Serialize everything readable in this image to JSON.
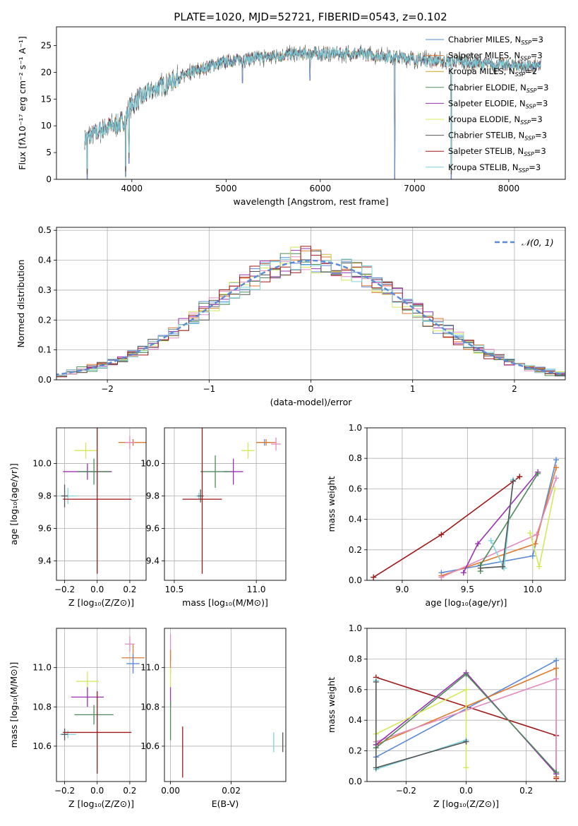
{
  "figure": {
    "title": "PLATE=1020, MJD=52721, FIBERID=0543, z=0.102"
  },
  "colors": {
    "Chabrier MILES": "#5b8bd6",
    "Salpeter MILES": "#e07a2e",
    "Kroupa MILES": "#c9a227",
    "Chabrier ELODIE": "#4f8a5b",
    "Salpeter ELODIE": "#9b30b0",
    "Kroupa ELODIE": "#d4e85a",
    "Chabrier STELIB": "#555555",
    "Salpeter STELIB": "#a01818",
    "Kroupa STELIB": "#7fd4dc",
    "pink": "#e48bc0"
  },
  "chart_data": [
    {
      "id": "spectrum",
      "type": "line",
      "xlabel": "wavelength [Angstrom, rest frame]",
      "ylabel": "Flux [fλ10⁻¹⁷ erg cm⁻² s⁻¹ A⁻¹]",
      "xlim": [
        3200,
        8600
      ],
      "ylim": [
        0,
        28.5
      ],
      "xticks": [
        4000,
        5000,
        6000,
        7000,
        8000
      ],
      "yticks": [
        0,
        5,
        10,
        15,
        20,
        25
      ],
      "legend_position": "top-right",
      "legend": [
        {
          "name": "Chabrier MILES, N",
          "sub": "SSP",
          "n": "=3"
        },
        {
          "name": "Salpeter MILES, N",
          "sub": "SSP",
          "n": "=3"
        },
        {
          "name": "Kroupa MILES, N",
          "sub": "SSP",
          "n": "=2"
        },
        {
          "name": "Chabrier ELODIE, N",
          "sub": "SSP",
          "n": "=3"
        },
        {
          "name": "Salpeter ELODIE, N",
          "sub": "SSP",
          "n": "=3"
        },
        {
          "name": "Kroupa ELODIE, N",
          "sub": "SSP",
          "n": "=3"
        },
        {
          "name": "Chabrier STELIB, N",
          "sub": "SSP",
          "n": "=3"
        },
        {
          "name": "Salpeter STELIB, N",
          "sub": "SSP",
          "n": "=3"
        },
        {
          "name": "Kroupa STELIB, N",
          "sub": "SSP",
          "n": "=3"
        }
      ],
      "continuum": {
        "x": [
          3500,
          3700,
          3900,
          4000,
          4200,
          4500,
          4800,
          5000,
          5200,
          5500,
          5800,
          6000,
          6300,
          6600,
          7000,
          7400,
          7800,
          8200,
          8350
        ],
        "y": [
          7.5,
          9.5,
          10.5,
          14,
          16.5,
          19,
          21,
          22,
          22.5,
          23,
          23.5,
          23.5,
          23.5,
          23.2,
          22.5,
          22,
          21.5,
          21.2,
          21
        ]
      },
      "dips": [
        {
          "x": 3935,
          "y": 0.5
        },
        {
          "x": 3970,
          "y": 3
        },
        {
          "x": 5175,
          "y": 18
        },
        {
          "x": 5890,
          "y": 18.5
        },
        {
          "x": 6790,
          "y": 0
        },
        {
          "x": 7390,
          "y": 0
        },
        {
          "x": 3525,
          "y": 0
        }
      ]
    },
    {
      "id": "residual-histogram",
      "type": "bar",
      "xlabel": "(data-model)/error",
      "ylabel": "Normed distribution",
      "xlim": [
        -2.5,
        2.5
      ],
      "ylim": [
        0,
        0.51
      ],
      "xticks": [
        -2,
        -1,
        0,
        1,
        2
      ],
      "yticks": [
        0.0,
        0.1,
        0.2,
        0.3,
        0.4,
        0.5
      ],
      "legend_position": "top-right",
      "legend": [
        {
          "name": "𝒩(0, 1)"
        }
      ],
      "bin_width": 0.1,
      "bin_start": -2.5
    },
    {
      "id": "age-vs-Z",
      "type": "scatter",
      "xlabel": "Z [log₁₀(Z/Z⊙)]",
      "ylabel": "age  [log₁₀(age/yr)]",
      "xlim": [
        -0.25,
        0.3
      ],
      "ylim": [
        9.28,
        10.22
      ],
      "xticks": [
        -0.2,
        0.0,
        0.2
      ],
      "yticks": [
        9.4,
        9.6,
        9.8,
        10.0
      ],
      "points": [
        {
          "series": "Chabrier MILES",
          "x": 0.22,
          "y": 10.13,
          "xerr": 0.04,
          "yerr": 0.02
        },
        {
          "series": "Salpeter MILES",
          "x": 0.22,
          "y": 10.13,
          "xerr": 0.09,
          "yerr": 0.02
        },
        {
          "series": "pink",
          "x": 0.2,
          "y": 10.13,
          "xerr": 0.03,
          "yerr": 0.04
        },
        {
          "series": "Kroupa ELODIE",
          "x": -0.07,
          "y": 10.08,
          "xerr": 0.07,
          "yerr": 0.05
        },
        {
          "series": "Salpeter ELODIE",
          "x": -0.06,
          "y": 9.95,
          "xerr": 0.15,
          "yerr": 0.05
        },
        {
          "series": "Chabrier ELODIE",
          "x": -0.02,
          "y": 9.95,
          "xerr": 0.1,
          "yerr": 0.08
        },
        {
          "series": "Kroupa STELIB",
          "x": -0.18,
          "y": 9.8,
          "xerr": 0.05,
          "yerr": 0.05
        },
        {
          "series": "Chabrier STELIB",
          "x": -0.2,
          "y": 9.8,
          "xerr": 0.02,
          "yerr": 0.07
        },
        {
          "series": "Salpeter STELIB",
          "x": 0.0,
          "y": 9.78,
          "xerr": 0.21,
          "yerr": 0.46
        }
      ]
    },
    {
      "id": "age-vs-mass",
      "type": "scatter",
      "xlabel": "mass [log₁₀(M/M⊙)]",
      "ylabel": "",
      "xlim": [
        10.44,
        11.18
      ],
      "ylim": [
        9.28,
        10.22
      ],
      "xticks": [
        10.5,
        11.0
      ],
      "yticks": [
        9.4,
        9.6,
        9.8,
        10.0
      ],
      "points": [
        {
          "series": "Chabrier MILES",
          "x": 11.05,
          "y": 10.13,
          "xerr": 0.05,
          "yerr": 0.02
        },
        {
          "series": "Salpeter MILES",
          "x": 11.06,
          "y": 10.13,
          "xerr": 0.06,
          "yerr": 0.02
        },
        {
          "series": "pink",
          "x": 11.12,
          "y": 10.12,
          "xerr": 0.03,
          "yerr": 0.04
        },
        {
          "series": "Kroupa ELODIE",
          "x": 10.95,
          "y": 10.08,
          "xerr": 0.04,
          "yerr": 0.05
        },
        {
          "series": "Salpeter ELODIE",
          "x": 10.86,
          "y": 9.95,
          "xerr": 0.06,
          "yerr": 0.08
        },
        {
          "series": "Chabrier ELODIE",
          "x": 10.75,
          "y": 9.95,
          "xerr": 0.09,
          "yerr": 0.1
        },
        {
          "series": "Kroupa STELIB",
          "x": 10.65,
          "y": 9.8,
          "xerr": 0.02,
          "yerr": 0.02
        },
        {
          "series": "Chabrier STELIB",
          "x": 10.66,
          "y": 9.8,
          "xerr": 0.02,
          "yerr": 0.04
        },
        {
          "series": "Salpeter STELIB",
          "x": 10.67,
          "y": 9.78,
          "xerr": 0.12,
          "yerr": 0.46
        }
      ]
    },
    {
      "id": "massweight-vs-age",
      "type": "line",
      "xlabel": "age  [log₁₀(age/yr)]",
      "ylabel": "mass weight",
      "xlim": [
        8.73,
        10.25
      ],
      "ylim": [
        0.0,
        1.0
      ],
      "xticks": [
        9.0,
        9.5,
        10.0
      ],
      "yticks": [
        0.0,
        0.2,
        0.4,
        0.6,
        0.8,
        1.0
      ],
      "series": [
        {
          "name": "Salpeter STELIB",
          "x": [
            8.78,
            9.3,
            9.9
          ],
          "y": [
            0.02,
            0.3,
            0.68
          ]
        },
        {
          "name": "Chabrier MILES",
          "x": [
            9.3,
            10.0,
            10.18
          ],
          "y": [
            0.05,
            0.16,
            0.79
          ]
        },
        {
          "name": "Salpeter MILES",
          "x": [
            9.3,
            10.02,
            10.18
          ],
          "y": [
            0.03,
            0.24,
            0.74
          ]
        },
        {
          "name": "pink",
          "x": [
            9.3,
            10.03,
            10.18
          ],
          "y": [
            0.02,
            0.3,
            0.67
          ]
        },
        {
          "name": "Salpeter ELODIE",
          "x": [
            9.47,
            9.58,
            10.04
          ],
          "y": [
            0.05,
            0.24,
            0.71
          ]
        },
        {
          "name": "Chabrier ELODIE",
          "x": [
            9.6,
            9.6,
            10.04
          ],
          "y": [
            0.06,
            0.1,
            0.7
          ]
        },
        {
          "name": "Kroupa ELODIE",
          "x": [
            9.98,
            10.05,
            10.17
          ],
          "y": [
            0.31,
            0.09,
            0.6
          ]
        },
        {
          "name": "Kroupa STELIB",
          "x": [
            9.68,
            9.78,
            9.85
          ],
          "y": [
            0.26,
            0.08,
            0.66
          ]
        },
        {
          "name": "Chabrier STELIB",
          "x": [
            9.6,
            9.77,
            9.85
          ],
          "y": [
            0.08,
            0.09,
            0.65
          ]
        }
      ]
    },
    {
      "id": "mass-vs-Z",
      "type": "scatter",
      "xlabel": "Z [log₁₀(Z/Z⊙)]",
      "ylabel": "mass [log₁₀(M/M⊙)]",
      "xlim": [
        -0.25,
        0.3
      ],
      "ylim": [
        10.42,
        11.2
      ],
      "xticks": [
        -0.2,
        0.0,
        0.2
      ],
      "yticks": [
        10.6,
        10.8,
        11.0
      ],
      "points": [
        {
          "series": "Salpeter MILES",
          "x": 0.22,
          "y": 11.05,
          "xerr": 0.07,
          "yerr": 0.07
        },
        {
          "series": "Chabrier MILES",
          "x": 0.22,
          "y": 11.02,
          "xerr": 0.04,
          "yerr": 0.05
        },
        {
          "series": "pink",
          "x": 0.2,
          "y": 11.12,
          "xerr": 0.03,
          "yerr": 0.04
        },
        {
          "series": "Kroupa ELODIE",
          "x": -0.06,
          "y": 10.93,
          "xerr": 0.07,
          "yerr": 0.05
        },
        {
          "series": "Salpeter ELODIE",
          "x": -0.06,
          "y": 10.85,
          "xerr": 0.1,
          "yerr": 0.05
        },
        {
          "series": "Chabrier ELODIE",
          "x": -0.02,
          "y": 10.76,
          "xerr": 0.12,
          "yerr": 0.05
        },
        {
          "series": "Kroupa STELIB",
          "x": -0.18,
          "y": 10.66,
          "xerr": 0.05,
          "yerr": 0.02
        },
        {
          "series": "Chabrier STELIB",
          "x": -0.2,
          "y": 10.66,
          "xerr": 0.02,
          "yerr": 0.03
        },
        {
          "series": "Salpeter STELIB",
          "x": 0.0,
          "y": 10.67,
          "xerr": 0.21,
          "yerr": 0.21
        }
      ]
    },
    {
      "id": "mass-vs-EBV",
      "type": "scatter",
      "xlabel": "E(B-V)",
      "ylabel": "",
      "xlim": [
        -0.002,
        0.038
      ],
      "ylim": [
        10.42,
        11.2
      ],
      "xticks": [
        0.0,
        0.02
      ],
      "yticks": [
        10.6,
        10.8,
        11.0
      ],
      "points": [
        {
          "series": "pink",
          "x": 0.0,
          "y": 11.1,
          "yerr": 0.07
        },
        {
          "series": "Salpeter MILES",
          "x": 0.0,
          "y": 11.03,
          "yerr": 0.06
        },
        {
          "series": "Kroupa ELODIE",
          "x": 0.0,
          "y": 10.95,
          "yerr": 0.05
        },
        {
          "series": "Salpeter ELODIE",
          "x": 0.0,
          "y": 10.85,
          "yerr": 0.05
        },
        {
          "series": "Chabrier ELODIE",
          "x": 0.0,
          "y": 10.73,
          "yerr": 0.1
        },
        {
          "series": "Salpeter STELIB",
          "x": 0.004,
          "y": 10.57,
          "yerr": 0.13
        },
        {
          "series": "Kroupa STELIB",
          "x": 0.034,
          "y": 10.62,
          "yerr": 0.05
        },
        {
          "series": "Chabrier STELIB",
          "x": 0.037,
          "y": 10.62,
          "yerr": 0.05
        }
      ]
    },
    {
      "id": "massweight-vs-Z",
      "type": "line",
      "xlabel": "Z [log₁₀(Z/Z⊙)]",
      "ylabel": "mass weight",
      "xlim": [
        -0.33,
        0.33
      ],
      "ylim": [
        0.0,
        1.0
      ],
      "xticks": [
        -0.2,
        0.0,
        0.2
      ],
      "yticks": [
        0.0,
        0.2,
        0.4,
        0.6,
        0.8,
        1.0
      ],
      "series": [
        {
          "name": "Salpeter STELIB",
          "x": [
            -0.3,
            0.3,
            0.3
          ],
          "y": [
            0.68,
            0.3,
            0.02
          ]
        },
        {
          "name": "Chabrier MILES",
          "x": [
            -0.3,
            0.3,
            0.3
          ],
          "y": [
            0.16,
            0.79,
            0.05
          ]
        },
        {
          "name": "Salpeter MILES",
          "x": [
            -0.3,
            0.3,
            0.3
          ],
          "y": [
            0.24,
            0.74,
            0.03
          ]
        },
        {
          "name": "pink",
          "x": [
            -0.3,
            0.3,
            0.3
          ],
          "y": [
            0.26,
            0.67,
            0.05
          ]
        },
        {
          "name": "Salpeter ELODIE",
          "x": [
            -0.3,
            0.0,
            0.3
          ],
          "y": [
            0.24,
            0.71,
            0.05
          ]
        },
        {
          "name": "Chabrier ELODIE",
          "x": [
            -0.3,
            0.0,
            0.3
          ],
          "y": [
            0.22,
            0.7,
            0.06
          ]
        },
        {
          "name": "Kroupa ELODIE",
          "x": [
            -0.3,
            0.0,
            0.0
          ],
          "y": [
            0.31,
            0.6,
            0.09
          ]
        },
        {
          "name": "Kroupa STELIB",
          "x": [
            -0.3,
            -0.3,
            0.0
          ],
          "y": [
            0.66,
            0.08,
            0.27
          ]
        },
        {
          "name": "Chabrier STELIB",
          "x": [
            -0.3,
            -0.3,
            0.0
          ],
          "y": [
            0.65,
            0.09,
            0.26
          ]
        }
      ]
    }
  ]
}
